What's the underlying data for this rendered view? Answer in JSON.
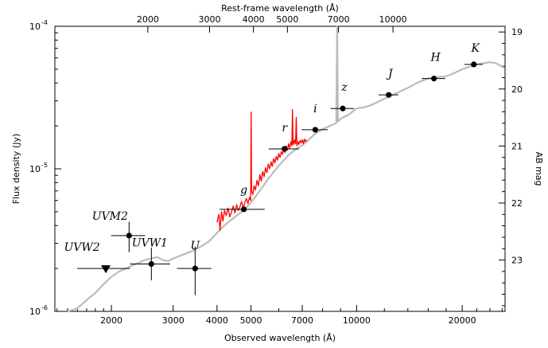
{
  "chart_data": {
    "type": "scatter",
    "xlabel": "Observed wavelength (Å)",
    "x2label": "Rest-frame wavelength (Å)",
    "ylabel": "Flux density (Jy)",
    "y2label": "AB mag",
    "xscale": "log",
    "yscale": "log",
    "xlim": [
      1380,
      26500
    ],
    "ylim": [
      1e-06,
      0.0001
    ],
    "x_ticks": [
      2000,
      3000,
      4000,
      5000,
      7000,
      10000,
      20000
    ],
    "x2_ticks": [
      2000,
      3000,
      4000,
      5000,
      7000,
      10000
    ],
    "x2_tick_positions": [
      2540,
      3810,
      5080,
      6350,
      8880,
      12700
    ],
    "y_ticks": [
      {
        "value": 1e-06,
        "label": "10",
        "exp": "-6"
      },
      {
        "value": 1e-05,
        "label": "10",
        "exp": "-5"
      },
      {
        "value": 0.0001,
        "label": "10",
        "exp": "-4"
      }
    ],
    "y2_ticks": [
      19,
      20,
      21,
      22,
      23
    ],
    "photometry": [
      {
        "band": "UVW2",
        "x": 1928,
        "y": 2e-06,
        "xerr": 330,
        "yerr": null,
        "upper_limit": true
      },
      {
        "band": "UVM2",
        "x": 2246,
        "y": 3.4e-06,
        "xerr": 250,
        "yerr": [
          8e-07,
          8.5e-07
        ]
      },
      {
        "band": "UVW1",
        "x": 2600,
        "y": 2.15e-06,
        "xerr": 340,
        "yerr": [
          5e-07,
          6.5e-07
        ]
      },
      {
        "band": "U",
        "x": 3465,
        "y": 2e-06,
        "xerr": 390,
        "yerr": [
          7e-07,
          8.5e-07
        ]
      },
      {
        "band": "g",
        "x": 4770,
        "y": 5.2e-06,
        "xerr": 700,
        "yerr": null
      },
      {
        "band": "r",
        "x": 6231,
        "y": 1.38e-05,
        "xerr": 620,
        "yerr": null
      },
      {
        "band": "i",
        "x": 7625,
        "y": 1.88e-05,
        "xerr": 650,
        "yerr": null
      },
      {
        "band": "z",
        "x": 9134,
        "y": 2.65e-05,
        "xerr": 700,
        "yerr": null
      },
      {
        "band": "J",
        "x": 12350,
        "y": 3.3e-05,
        "xerr": 800,
        "yerr": null
      },
      {
        "band": "H",
        "x": 16620,
        "y": 4.3e-05,
        "xerr": 1300,
        "yerr": null
      },
      {
        "band": "K",
        "x": 21590,
        "y": 5.4e-05,
        "xerr": 1300,
        "yerr": null
      }
    ],
    "series": [
      {
        "color": "#bbbbbb",
        "points": [
          [
            1500,
            1e-06
          ],
          [
            1600,
            1.05e-06
          ],
          [
            1700,
            1.2e-06
          ],
          [
            1800,
            1.35e-06
          ],
          [
            1900,
            1.55e-06
          ],
          [
            2000,
            1.75e-06
          ],
          [
            2100,
            1.9e-06
          ],
          [
            2200,
            2e-06
          ],
          [
            2300,
            2.1e-06
          ],
          [
            2400,
            2.2e-06
          ],
          [
            2500,
            2.3e-06
          ],
          [
            2600,
            2.35e-06
          ],
          [
            2700,
            2.4e-06
          ],
          [
            2800,
            2.3e-06
          ],
          [
            2900,
            2.25e-06
          ],
          [
            3000,
            2.35e-06
          ],
          [
            3200,
            2.5e-06
          ],
          [
            3400,
            2.65e-06
          ],
          [
            3600,
            2.85e-06
          ],
          [
            3800,
            3.1e-06
          ],
          [
            4000,
            3.55e-06
          ],
          [
            4200,
            4e-06
          ],
          [
            4400,
            4.4e-06
          ],
          [
            4600,
            4.8e-06
          ],
          [
            4800,
            5.2e-06
          ],
          [
            5000,
            5.8e-06
          ],
          [
            5200,
            6.6e-06
          ],
          [
            5400,
            7.5e-06
          ],
          [
            5600,
            8.5e-06
          ],
          [
            5800,
            9.5e-06
          ],
          [
            6000,
            1.05e-05
          ],
          [
            6200,
            1.15e-05
          ],
          [
            6400,
            1.25e-05
          ],
          [
            6600,
            1.33e-05
          ],
          [
            6800,
            1.4e-05
          ],
          [
            7000,
            1.46e-05
          ],
          [
            7200,
            1.55e-05
          ],
          [
            7400,
            1.65e-05
          ],
          [
            7600,
            1.75e-05
          ],
          [
            7800,
            1.83e-05
          ],
          [
            8000,
            1.9e-05
          ],
          [
            8200,
            1.95e-05
          ],
          [
            8400,
            2e-05
          ],
          [
            8600,
            2.05e-05
          ],
          [
            8750,
            2.1e-05
          ],
          [
            8800,
            0.0001
          ],
          [
            8850,
            2.15e-05
          ],
          [
            9000,
            2.25e-05
          ],
          [
            9500,
            2.4e-05
          ],
          [
            10000,
            2.65e-05
          ],
          [
            10500,
            2.7e-05
          ],
          [
            11000,
            2.8e-05
          ],
          [
            12000,
            3.1e-05
          ],
          [
            13000,
            3.4e-05
          ],
          [
            14000,
            3.7e-05
          ],
          [
            15000,
            4.05e-05
          ],
          [
            16000,
            4.3e-05
          ],
          [
            17000,
            4.4e-05
          ],
          [
            18000,
            4.45e-05
          ],
          [
            19000,
            4.7e-05
          ],
          [
            20000,
            5e-05
          ],
          [
            21000,
            5.2e-05
          ],
          [
            22000,
            5.4e-05
          ],
          [
            23000,
            5.5e-05
          ],
          [
            24000,
            5.6e-05
          ],
          [
            25000,
            5.5e-05
          ],
          [
            26000,
            5.2e-05
          ],
          [
            26400,
            5.1e-05
          ]
        ]
      },
      {
        "color": "#ff0000",
        "points": [
          [
            4000,
            4.2e-06
          ],
          [
            4050,
            4.8e-06
          ],
          [
            4080,
            3.7e-06
          ],
          [
            4120,
            5e-06
          ],
          [
            4160,
            4.3e-06
          ],
          [
            4200,
            5.1e-06
          ],
          [
            4250,
            4.7e-06
          ],
          [
            4300,
            5.3e-06
          ],
          [
            4350,
            4.6e-06
          ],
          [
            4400,
            5e-06
          ],
          [
            4450,
            5.5e-06
          ],
          [
            4500,
            4.9e-06
          ],
          [
            4550,
            5.6e-06
          ],
          [
            4600,
            5.1e-06
          ],
          [
            4650,
            5.4e-06
          ],
          [
            4700,
            5.9e-06
          ],
          [
            4750,
            5.3e-06
          ],
          [
            4800,
            5.8e-06
          ],
          [
            4850,
            6.2e-06
          ],
          [
            4900,
            5.7e-06
          ],
          [
            4950,
            6.3e-06
          ],
          [
            4990,
            6e-06
          ],
          [
            5007,
            2.5e-05
          ],
          [
            5020,
            7e-06
          ],
          [
            5060,
            6.6e-06
          ],
          [
            5100,
            7.6e-06
          ],
          [
            5150,
            7.1e-06
          ],
          [
            5200,
            8.3e-06
          ],
          [
            5250,
            7.6e-06
          ],
          [
            5300,
            9.1e-06
          ],
          [
            5350,
            8.2e-06
          ],
          [
            5400,
            9.6e-06
          ],
          [
            5450,
            8.8e-06
          ],
          [
            5500,
            1.02e-05
          ],
          [
            5550,
            9.4e-06
          ],
          [
            5600,
            1.08e-05
          ],
          [
            5650,
            1e-05
          ],
          [
            5700,
            1.12e-05
          ],
          [
            5750,
            1.04e-05
          ],
          [
            5800,
            1.18e-05
          ],
          [
            5850,
            1.1e-05
          ],
          [
            5900,
            1.22e-05
          ],
          [
            5950,
            1.15e-05
          ],
          [
            6000,
            1.28e-05
          ],
          [
            6050,
            1.2e-05
          ],
          [
            6100,
            1.32e-05
          ],
          [
            6150,
            1.26e-05
          ],
          [
            6200,
            1.38e-05
          ],
          [
            6250,
            1.3e-05
          ],
          [
            6300,
            1.45e-05
          ],
          [
            6350,
            1.35e-05
          ],
          [
            6400,
            1.5e-05
          ],
          [
            6450,
            1.4e-05
          ],
          [
            6500,
            1.55e-05
          ],
          [
            6540,
            1.45e-05
          ],
          [
            6563,
            2.6e-05
          ],
          [
            6590,
            1.5e-05
          ],
          [
            6620,
            1.48e-05
          ],
          [
            6650,
            1.6e-05
          ],
          [
            6700,
            1.5e-05
          ],
          [
            6731,
            2.3e-05
          ],
          [
            6760,
            1.45e-05
          ],
          [
            6800,
            1.55e-05
          ],
          [
            6850,
            1.48e-05
          ],
          [
            6900,
            1.58e-05
          ],
          [
            6950,
            1.52e-05
          ],
          [
            7000,
            1.6e-05
          ],
          [
            7050,
            1.5e-05
          ],
          [
            7100,
            1.62e-05
          ],
          [
            7150,
            1.55e-05
          ],
          [
            7200,
            1.6e-05
          ]
        ]
      }
    ]
  }
}
